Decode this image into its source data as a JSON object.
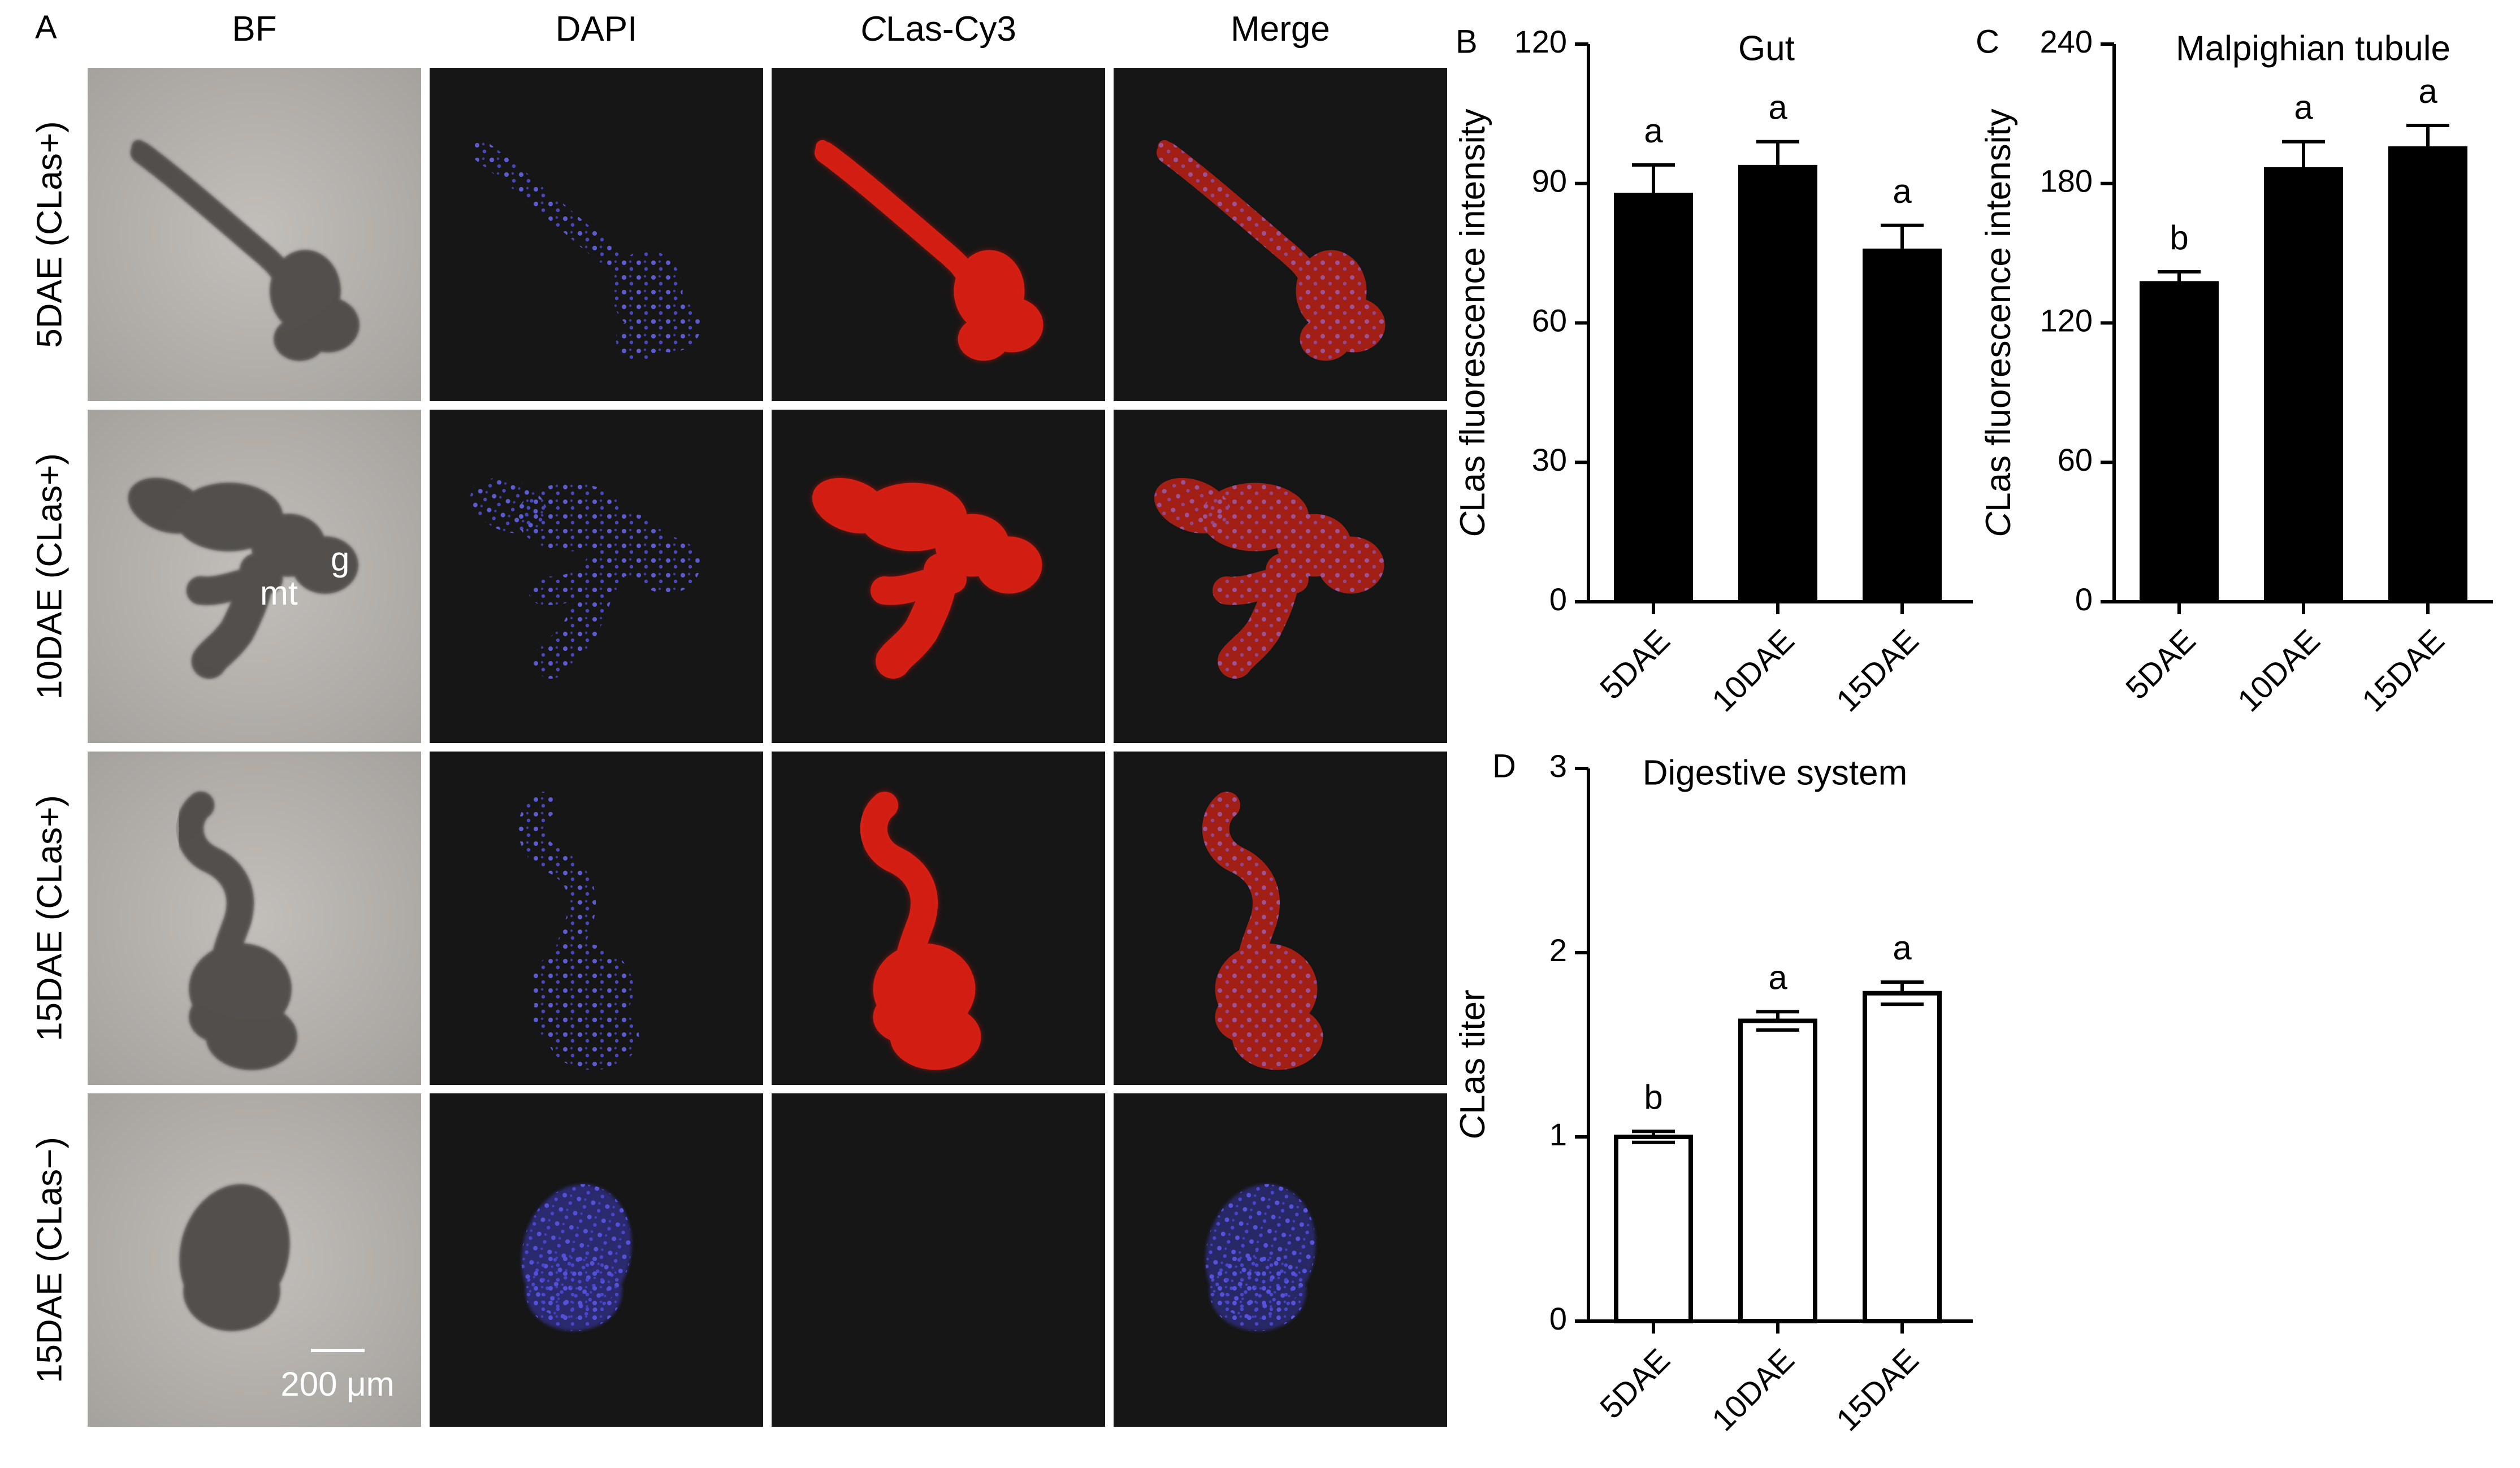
{
  "figure": {
    "panel_labels": [
      "A",
      "B",
      "C",
      "D"
    ],
    "image_panel": {
      "columns": [
        "BF",
        "DAPI",
        "CLas-Cy3",
        "Merge"
      ],
      "rows": [
        "5DAE (CLas+)",
        "10DAE (CLas+)",
        "15DAE (CLas+)",
        "15DAE (CLas−)"
      ],
      "annotations": [
        "g",
        "mt"
      ],
      "scale_bar": "200 μm"
    }
  },
  "chart_data": [
    {
      "panel": "B",
      "type": "bar",
      "title": "Gut",
      "ylabel": "CLas fluorescence intensity",
      "categories": [
        "5DAE",
        "10DAE",
        "15DAE"
      ],
      "values": [
        88,
        94,
        76
      ],
      "errors": [
        6,
        5,
        5
      ],
      "significance": [
        "a",
        "a",
        "a"
      ],
      "ylim": [
        0,
        120
      ],
      "yticks": [
        0,
        30,
        60,
        90,
        120
      ],
      "bar_fill": "#000000"
    },
    {
      "panel": "C",
      "type": "bar",
      "title": "Malpighian tubule",
      "ylabel": "CLas fluorescence intensity",
      "categories": [
        "5DAE",
        "10DAE",
        "15DAE"
      ],
      "values": [
        138,
        187,
        196
      ],
      "errors": [
        4,
        11,
        9
      ],
      "significance": [
        "b",
        "a",
        "a"
      ],
      "ylim": [
        0,
        240
      ],
      "yticks": [
        0,
        60,
        120,
        180,
        240
      ],
      "bar_fill": "#000000"
    },
    {
      "panel": "D",
      "type": "bar",
      "title": "Digestive system",
      "ylabel": "CLas titer",
      "categories": [
        "5DAE",
        "10DAE",
        "15DAE"
      ],
      "values": [
        1.0,
        1.63,
        1.78
      ],
      "errors": [
        0.03,
        0.05,
        0.06
      ],
      "significance": [
        "b",
        "a",
        "a"
      ],
      "ylim": [
        0,
        3
      ],
      "yticks": [
        0,
        1,
        2,
        3
      ],
      "bar_fill": "#ffffff"
    }
  ]
}
